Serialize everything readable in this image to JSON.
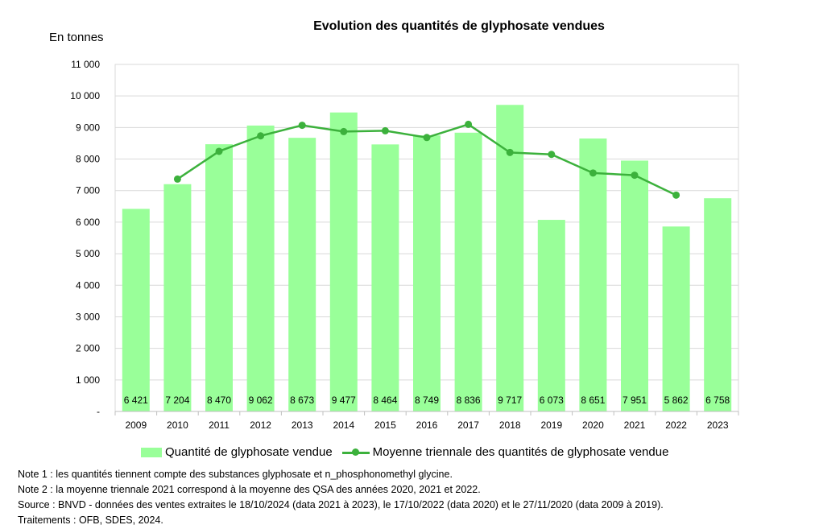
{
  "chart_data": {
    "type": "bar",
    "title": "Evolution des quantités de glyphosate vendues",
    "ylabel": "En tonnes",
    "xlabel": "",
    "categories": [
      "2009",
      "2010",
      "2011",
      "2012",
      "2013",
      "2014",
      "2015",
      "2016",
      "2017",
      "2018",
      "2019",
      "2020",
      "2021",
      "2022",
      "2023"
    ],
    "series": [
      {
        "name": "Quantité de glyphosate vendue",
        "type": "bar",
        "color": "#99ff99",
        "values": [
          6421,
          7204,
          8470,
          9062,
          8673,
          9477,
          8464,
          8749,
          8836,
          9717,
          6073,
          8651,
          7951,
          5862,
          6758
        ],
        "labels": [
          "6 421",
          "7 204",
          "8 470",
          "9 062",
          "8 673",
          "9 477",
          "8 464",
          "8 749",
          "8 836",
          "9 717",
          "6 073",
          "8 651",
          "7 951",
          "5 862",
          "6 758"
        ]
      },
      {
        "name": "Moyenne triennale des quantités de glyphosate vendue",
        "type": "line",
        "color": "#3cb13c",
        "values": [
          null,
          7365,
          8245,
          8735,
          9071,
          8871,
          8897,
          8683,
          9101,
          8209,
          8148,
          7558,
          7488,
          6857,
          null
        ]
      }
    ],
    "ylim": [
      0,
      11000
    ],
    "yticks": [
      0,
      1000,
      2000,
      3000,
      4000,
      5000,
      6000,
      7000,
      8000,
      9000,
      10000,
      11000
    ],
    "ytick_labels": [
      "-",
      "1 000",
      "2 000",
      "3 000",
      "4 000",
      "5 000",
      "6 000",
      "7 000",
      "8 000",
      "9 000",
      "10 000",
      "11 000"
    ],
    "grid": true,
    "legend_position": "bottom"
  },
  "notes": [
    "Note 1 : les quantités tiennent compte des substances glyphosate et n_phosphonomethyl  glycine.",
    "Note 2 : la moyenne triennale 2021 correspond à la moyenne des QSA des années 2020, 2021 et 2022.",
    "Source : BNVD - données des ventes extraites le 18/10/2024  (data 2021 à 2023), le 17/10/2022  (data 2020) et le 27/11/2020  (data 2009 à 2019).",
    "Traitements : OFB, SDES, 2024."
  ]
}
